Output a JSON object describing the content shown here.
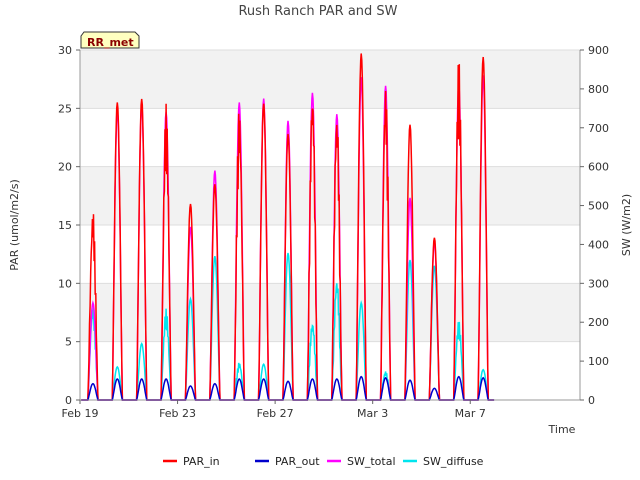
{
  "chart_data": {
    "type": "line",
    "title": "Rush Ranch PAR and SW",
    "site_label": "RR_met",
    "xlabel": "Time",
    "ylabel_left": "PAR (umol/m2/s)",
    "ylabel_right": "SW (W/m2)",
    "x_range_days": [
      0,
      20.5
    ],
    "y_left_range": [
      0,
      30
    ],
    "y_right_range": [
      0,
      900
    ],
    "y_left_ticks": [
      "0",
      "5",
      "10",
      "15",
      "20",
      "25",
      "30"
    ],
    "y_right_ticks": [
      "0",
      "100",
      "200",
      "300",
      "400",
      "500",
      "600",
      "700",
      "800",
      "900"
    ],
    "x_ticks": [
      {
        "day": 0,
        "label": "Feb 19"
      },
      {
        "day": 4,
        "label": "Feb 23"
      },
      {
        "day": 8,
        "label": "Feb 27"
      },
      {
        "day": 12,
        "label": "Mar 3"
      },
      {
        "day": 16,
        "label": "Mar 7"
      }
    ],
    "grid": true,
    "legend_position": "bottom",
    "colors": {
      "PAR_in": "#ff0000",
      "PAR_out": "#0000cc",
      "SW_total": "#ff00ff",
      "SW_diffuse": "#00e5ee"
    },
    "legend": [
      {
        "key": "PAR_in",
        "label": "PAR_in"
      },
      {
        "key": "PAR_out",
        "label": "PAR_out"
      },
      {
        "key": "SW_total",
        "label": "SW_total"
      },
      {
        "key": "SW_diffuse",
        "label": "SW_diffuse"
      }
    ],
    "daily_peaks": [
      {
        "day": 0,
        "PAR_in": 16.4,
        "PAR_out": 1.4,
        "SW_total": 250,
        "SW_diffuse": 245
      },
      {
        "day": 1,
        "PAR_in": 25.5,
        "PAR_out": 1.8,
        "SW_total": 745,
        "SW_diffuse": 85
      },
      {
        "day": 2,
        "PAR_in": 25.8,
        "PAR_out": 1.8,
        "SW_total": 760,
        "SW_diffuse": 145
      },
      {
        "day": 3,
        "PAR_in": 25.4,
        "PAR_out": 1.8,
        "SW_total": 740,
        "SW_diffuse": 235
      },
      {
        "day": 4,
        "PAR_in": 16.8,
        "PAR_out": 1.2,
        "SW_total": 445,
        "SW_diffuse": 260
      },
      {
        "day": 5,
        "PAR_in": 18.5,
        "PAR_out": 1.4,
        "SW_total": 590,
        "SW_diffuse": 370
      },
      {
        "day": 6,
        "PAR_in": 25.2,
        "PAR_out": 1.8,
        "SW_total": 765,
        "SW_diffuse": 98
      },
      {
        "day": 7,
        "PAR_in": 25.4,
        "PAR_out": 1.8,
        "SW_total": 775,
        "SW_diffuse": 92
      },
      {
        "day": 8,
        "PAR_in": 22.8,
        "PAR_out": 1.6,
        "SW_total": 718,
        "SW_diffuse": 378
      },
      {
        "day": 9,
        "PAR_in": 26.8,
        "PAR_out": 1.8,
        "SW_total": 790,
        "SW_diffuse": 205
      },
      {
        "day": 10,
        "PAR_in": 25.0,
        "PAR_out": 1.8,
        "SW_total": 735,
        "SW_diffuse": 318
      },
      {
        "day": 11,
        "PAR_in": 29.7,
        "PAR_out": 2.0,
        "SW_total": 830,
        "SW_diffuse": 250
      },
      {
        "day": 12,
        "PAR_in": 27.1,
        "PAR_out": 1.9,
        "SW_total": 808,
        "SW_diffuse": 75
      },
      {
        "day": 13,
        "PAR_in": 23.6,
        "PAR_out": 1.7,
        "SW_total": 520,
        "SW_diffuse": 360
      },
      {
        "day": 14,
        "PAR_in": 13.9,
        "PAR_out": 1.0,
        "SW_total": 408,
        "SW_diffuse": 345
      },
      {
        "day": 15,
        "PAR_in": 29.4,
        "PAR_out": 2.0,
        "SW_total": 810,
        "SW_diffuse": 205
      },
      {
        "day": 16,
        "PAR_in": 29.4,
        "PAR_out": 1.9,
        "SW_total": 835,
        "SW_diffuse": 78
      }
    ]
  }
}
